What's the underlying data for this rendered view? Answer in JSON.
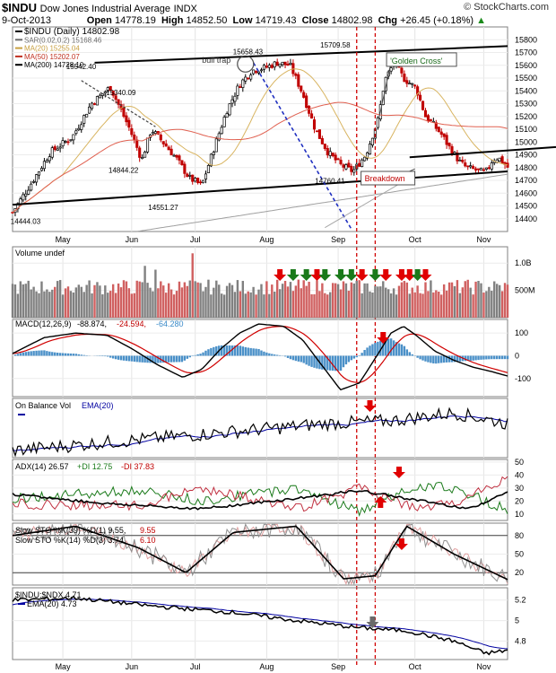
{
  "header": {
    "symbol": "$INDU",
    "name": "Dow Jones Industrial Average",
    "exchange": "INDX",
    "date": "9-Oct-2013",
    "open_label": "Open",
    "open": "14778.19",
    "high_label": "High",
    "high": "14852.50",
    "low_label": "Low",
    "low": "14719.43",
    "close_label": "Close",
    "close": "14802.98",
    "chg_label": "Chg",
    "chg": "+26.45 (+0.18%)",
    "brand": "© StockCharts.com"
  },
  "chart_data": [
    {
      "type": "line",
      "panel": "price",
      "legend": [
        {
          "text": "$INDU (Daily) 14802.98",
          "color": "#000000"
        },
        {
          "text": "SAR(0.02,0.2) 15168.46",
          "color": "#6a6a6a"
        },
        {
          "text": "MA(20) 15255.04",
          "color": "#c8a040"
        },
        {
          "text": "MA(50) 15202.07",
          "color": "#c03020"
        },
        {
          "text": "MA(200) 14728.10",
          "color": "#000000"
        }
      ],
      "ylim": [
        14300,
        15900
      ],
      "y_ticks": [
        14400,
        14500,
        14600,
        14700,
        14800,
        14900,
        15000,
        15100,
        15200,
        15300,
        15400,
        15500,
        15600,
        15700,
        15800
      ],
      "x_tick_labels": [
        "May",
        "Jun",
        "Jul",
        "Aug",
        "Sep",
        "Oct",
        "Nov"
      ],
      "x_tick_days": [
        19,
        45,
        69,
        96,
        123,
        152,
        178
      ],
      "n_days": 188,
      "close_series": {
        "days": [
          0,
          6,
          12,
          19,
          25,
          31,
          37,
          41,
          44,
          48,
          52,
          56,
          60,
          64,
          68,
          72,
          76,
          80,
          84,
          88,
          92,
          96,
          100,
          104,
          108,
          112,
          116,
          118,
          121,
          124,
          128,
          131,
          133,
          136,
          139,
          142,
          144,
          147,
          150,
          152,
          154,
          157
        ],
        "closes": [
          14450,
          14680,
          14920,
          15040,
          15300,
          15430,
          15110,
          14860,
          15100,
          14990,
          14870,
          14720,
          14660,
          14960,
          15250,
          15450,
          15560,
          15580,
          15620,
          15600,
          15380,
          15100,
          14920,
          14820,
          14770,
          14900,
          15180,
          15480,
          15620,
          15500,
          15420,
          15200,
          15150,
          15060,
          14940,
          14840,
          14800,
          14780,
          14760,
          14850,
          14880,
          14803
        ]
      },
      "point_labels": [
        {
          "text": "14444.03",
          "day": 4,
          "value": 14444.03
        },
        {
          "text": "15542.40",
          "day": 25,
          "value": 15542.4
        },
        {
          "text": "15340.09",
          "day": 40,
          "value": 15340.09
        },
        {
          "text": "14844.22",
          "day": 41,
          "value": 14844.22
        },
        {
          "text": "14551.27",
          "day": 56,
          "value": 14551.27
        },
        {
          "text": "15658.43",
          "day": 88,
          "value": 15658.43
        },
        {
          "text": "15709.58",
          "day": 121,
          "value": 15709.58
        },
        {
          "text": "14760.41",
          "day": 119,
          "value": 14760.41
        }
      ],
      "annotations": [
        {
          "text": "bull trap",
          "day": 79,
          "value": 15640
        },
        {
          "text": "'Golden Cross'",
          "day": 144,
          "value": 15620
        },
        {
          "text": "Breakdown",
          "day": 133,
          "value": 14700
        }
      ],
      "red_dashed_days": [
        130,
        137
      ]
    },
    {
      "type": "bar",
      "panel": "volume",
      "legend": [
        {
          "text": "Volume undef",
          "color": "#000000"
        }
      ],
      "y_tick_labels": [
        "1.0B",
        "500M"
      ],
      "y_ticks": [
        1.0,
        0.5
      ],
      "ylim": [
        0,
        1.3
      ],
      "arrows": [
        {
          "day": 101,
          "dir": "down",
          "color": "red"
        },
        {
          "day": 106,
          "dir": "down",
          "color": "green"
        },
        {
          "day": 111,
          "dir": "down",
          "color": "green"
        },
        {
          "day": 115,
          "dir": "down",
          "color": "red"
        },
        {
          "day": 118,
          "dir": "down",
          "color": "green"
        },
        {
          "day": 124,
          "dir": "down",
          "color": "green"
        },
        {
          "day": 128,
          "dir": "down",
          "color": "green"
        },
        {
          "day": 132,
          "dir": "down",
          "color": "red"
        },
        {
          "day": 137,
          "dir": "down",
          "color": "green"
        },
        {
          "day": 141,
          "dir": "down",
          "color": "red"
        },
        {
          "day": 147,
          "dir": "down",
          "color": "red"
        },
        {
          "day": 150,
          "dir": "down",
          "color": "red"
        },
        {
          "day": 153,
          "dir": "down",
          "color": "green"
        },
        {
          "day": 156,
          "dir": "down",
          "color": "red"
        }
      ]
    },
    {
      "type": "line",
      "panel": "macd",
      "legend": [
        {
          "text": "MACD(12,26,9)",
          "color": "#000000"
        },
        {
          "text": "-88.874,",
          "color": "#000000"
        },
        {
          "text": "-24.594,",
          "color": "#c00000"
        },
        {
          "text": "-64.280",
          "color": "#3a8ac8"
        }
      ],
      "y_ticks": [
        100,
        0,
        -100
      ],
      "ylim": [
        -180,
        160
      ],
      "macd_days": [
        0,
        10,
        20,
        30,
        38,
        46,
        54,
        60,
        66,
        72,
        78,
        86,
        92,
        98,
        104,
        110,
        116,
        120,
        124,
        128,
        134,
        140,
        146,
        152,
        157
      ],
      "macd_values": [
        10,
        80,
        100,
        90,
        30,
        -40,
        -95,
        -60,
        30,
        100,
        140,
        130,
        70,
        -40,
        -150,
        -120,
        10,
        100,
        130,
        90,
        20,
        -20,
        -50,
        -70,
        -89
      ],
      "arrows": [
        {
          "day": 140,
          "dir": "down",
          "color": "red"
        }
      ]
    },
    {
      "type": "line",
      "panel": "obv",
      "legend": [
        {
          "text": "On Balance Vol",
          "color": "#000000"
        },
        {
          "text": "EMA(20)",
          "color": "#0000a0"
        }
      ],
      "arrows": [
        {
          "day": 135,
          "dir": "down",
          "color": "red"
        }
      ]
    },
    {
      "type": "line",
      "panel": "adx",
      "legend": [
        {
          "text": "ADX(14) 26.57",
          "color": "#000000"
        },
        {
          "text": "+DI 12.75",
          "color": "#1a7a1a"
        },
        {
          "text": "-DI 37.83",
          "color": "#c00000"
        }
      ],
      "y_ticks": [
        50,
        40,
        30,
        20,
        10
      ],
      "ylim": [
        5,
        52
      ],
      "arrows": [
        {
          "day": 139,
          "dir": "up",
          "color": "red"
        },
        {
          "day": 146,
          "dir": "down",
          "color": "red"
        }
      ]
    },
    {
      "type": "line",
      "panel": "stoch",
      "legend": [
        {
          "text": "Slow STO %K(39) %D(1) 9.55,",
          "color": "#000000"
        },
        {
          "text": "9.55",
          "color": "#c00000"
        },
        {
          "text": "Slow STO %K(14) %D(3) 3.74,",
          "color": "#000000"
        },
        {
          "text": "6.10",
          "color": "#c00000"
        }
      ],
      "y_ticks": [
        80,
        50,
        20
      ],
      "ylim": [
        0,
        100
      ],
      "arrows": [
        {
          "day": 147,
          "dir": "down",
          "color": "red"
        }
      ]
    },
    {
      "type": "line",
      "panel": "ratio",
      "legend": [
        {
          "text": "$INDU:$NDX 4.71",
          "color": "#000000"
        },
        {
          "text": "EMA(20) 4.73",
          "color": "#0000a0"
        }
      ],
      "y_ticks": [
        5.2,
        5.0,
        4.8
      ],
      "ylim": [
        4.62,
        5.32
      ],
      "arrows": [
        {
          "day": 136,
          "dir": "down",
          "color": "gray"
        }
      ]
    }
  ]
}
